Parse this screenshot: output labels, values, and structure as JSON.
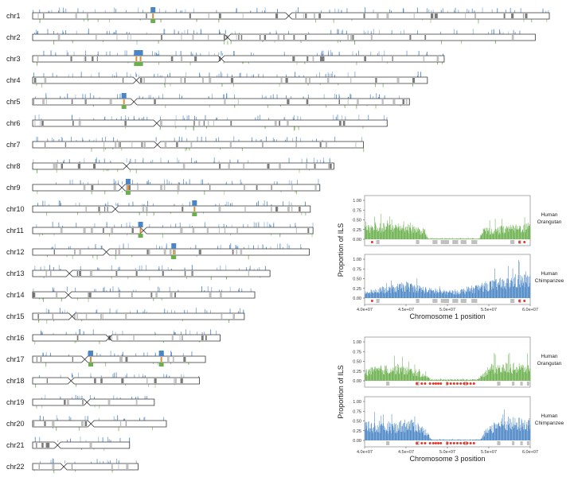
{
  "colors": {
    "ils_hc": "#4a86c5",
    "ils_ho": "#6ab04c",
    "overlap": "#e08a2c",
    "gap": "#7b7b7b",
    "gap_light": "#c0c0c0",
    "dot": "#e8332a"
  },
  "genome": {
    "chromosomes": [
      {
        "name": "chr1",
        "length": 248.96,
        "centromere": 123.4
      },
      {
        "name": "chr2",
        "length": 242.19,
        "centromere": 93.9
      },
      {
        "name": "chr3",
        "length": 198.3,
        "centromere": 90.9
      },
      {
        "name": "chr4",
        "length": 190.21,
        "centromere": 50.0
      },
      {
        "name": "chr5",
        "length": 181.54,
        "centromere": 48.8
      },
      {
        "name": "chr6",
        "length": 170.81,
        "centromere": 59.8
      },
      {
        "name": "chr7",
        "length": 159.35,
        "centromere": 60.1
      },
      {
        "name": "chr8",
        "length": 145.14,
        "centromere": 45.2
      },
      {
        "name": "chr9",
        "length": 138.39,
        "centromere": 43.0
      },
      {
        "name": "chr10",
        "length": 133.8,
        "centromere": 39.8
      },
      {
        "name": "chr11",
        "length": 135.09,
        "centromere": 53.4
      },
      {
        "name": "chr12",
        "length": 133.28,
        "centromere": 35.5
      },
      {
        "name": "chr13",
        "length": 114.36,
        "centromere": 17.7
      },
      {
        "name": "chr14",
        "length": 107.04,
        "centromere": 17.2
      },
      {
        "name": "chr15",
        "length": 101.99,
        "centromere": 19.0
      },
      {
        "name": "chr16",
        "length": 90.34,
        "centromere": 36.8
      },
      {
        "name": "chr17",
        "length": 83.26,
        "centromere": 25.1
      },
      {
        "name": "chr18",
        "length": 80.37,
        "centromere": 18.5
      },
      {
        "name": "chr19",
        "length": 58.62,
        "centromere": 26.2
      },
      {
        "name": "chr20",
        "length": 64.44,
        "centromere": 28.1
      },
      {
        "name": "chr21",
        "length": 46.71,
        "centromere": 12.0
      },
      {
        "name": "chr22",
        "length": 50.82,
        "centromere": 15.0
      }
    ]
  },
  "chart_data": [
    {
      "type": "bar",
      "xlabel": "Chromosome 1 position",
      "ylabel": "Proportion of ILS",
      "xlim": [
        40000000,
        60000000
      ],
      "xticks": [
        "4.0e+07",
        "4.5e+07",
        "5.0e+07",
        "5.5e+07",
        "6.0e+07"
      ],
      "ylim": [
        0,
        1
      ],
      "yticks": [
        "0.00",
        "0.25",
        "0.50",
        "0.75",
        "1.00"
      ],
      "panels": [
        {
          "name": "Human Orangutan",
          "label_lines": [
            "Human",
            "Orangutan"
          ],
          "color": "#6ab04c",
          "profile": [
            [
              40.0,
              0.28
            ],
            [
              44.0,
              0.3
            ],
            [
              46.0,
              0.26
            ],
            [
              47.3,
              0.18
            ],
            [
              47.6,
              0.02
            ],
            [
              53.8,
              0.02
            ],
            [
              54.3,
              0.2
            ],
            [
              57.0,
              0.25
            ],
            [
              60.0,
              0.3
            ]
          ],
          "gaps_x": [
            [
              41.4,
              41.8
            ],
            [
              46.2,
              46.6
            ],
            [
              48.2,
              48.8
            ],
            [
              49.2,
              50.2
            ],
            [
              50.6,
              51.3
            ],
            [
              51.6,
              52.3
            ],
            [
              52.9,
              53.6
            ],
            [
              57.6,
              58.1
            ],
            [
              58.6,
              58.9
            ]
          ],
          "dots_x": [
            40.9,
            58.7,
            59.3
          ]
        },
        {
          "name": "Human Chimpanzee",
          "label_lines": [
            "Human",
            "Chimpanzee"
          ],
          "color": "#4a86c5",
          "profile": [
            [
              40.0,
              0.15
            ],
            [
              43.0,
              0.22
            ],
            [
              45.0,
              0.3
            ],
            [
              48.0,
              0.18
            ],
            [
              50.0,
              0.14
            ],
            [
              52.0,
              0.18
            ],
            [
              53.5,
              0.25
            ],
            [
              55.0,
              0.32
            ],
            [
              57.0,
              0.36
            ],
            [
              58.5,
              0.45
            ],
            [
              60.0,
              0.42
            ]
          ],
          "gaps_x": [
            [
              41.4,
              41.8
            ],
            [
              46.2,
              46.6
            ],
            [
              48.2,
              48.8
            ],
            [
              49.2,
              50.2
            ],
            [
              50.6,
              51.3
            ],
            [
              51.6,
              52.3
            ],
            [
              52.9,
              53.6
            ],
            [
              57.6,
              58.1
            ],
            [
              58.6,
              58.9
            ]
          ],
          "dots_x": [
            40.9,
            58.7,
            59.3
          ]
        }
      ]
    },
    {
      "type": "bar",
      "xlabel": "Chromosome 3 position",
      "ylabel": "Proportion of ILS",
      "xlim": [
        40000000,
        60000000
      ],
      "xticks": [
        "4.0e+07",
        "4.5e+07",
        "5.0e+07",
        "5.5e+07",
        "6.0e+07"
      ],
      "ylim": [
        0,
        1
      ],
      "yticks": [
        "0.00",
        "0.25",
        "0.50",
        "0.75",
        "1.00"
      ],
      "panels": [
        {
          "name": "Human Orangutan",
          "label_lines": [
            "Human",
            "Orangutan"
          ],
          "color": "#6ab04c",
          "profile": [
            [
              40.0,
              0.22
            ],
            [
              42.0,
              0.28
            ],
            [
              44.0,
              0.3
            ],
            [
              46.0,
              0.22
            ],
            [
              47.5,
              0.1
            ],
            [
              48.0,
              0.03
            ],
            [
              53.5,
              0.03
            ],
            [
              54.3,
              0.15
            ],
            [
              55.0,
              0.3
            ],
            [
              57.0,
              0.33
            ],
            [
              60.0,
              0.3
            ]
          ],
          "gaps_x": [
            [
              42.6,
              43.0
            ],
            [
              46.2,
              46.6
            ],
            [
              49.8,
              50.1
            ],
            [
              52.0,
              52.4
            ],
            [
              56.0,
              56.4
            ],
            [
              57.8,
              58.1
            ],
            [
              58.8,
              59.1
            ],
            [
              59.6,
              59.9
            ]
          ],
          "dots_x": [
            46.3,
            46.9,
            47.3,
            47.9,
            48.3,
            48.6,
            48.9,
            49.2,
            50.0,
            50.4,
            50.8,
            51.2,
            51.6,
            52.0,
            52.4,
            52.8,
            53.2
          ]
        },
        {
          "name": "Human Chimpanzee",
          "label_lines": [
            "Human",
            "Chimpanzee"
          ],
          "color": "#4a86c5",
          "profile": [
            [
              40.0,
              0.38
            ],
            [
              42.0,
              0.3
            ],
            [
              44.0,
              0.34
            ],
            [
              46.0,
              0.38
            ],
            [
              47.5,
              0.2
            ],
            [
              48.0,
              0.02
            ],
            [
              54.0,
              0.02
            ],
            [
              54.8,
              0.25
            ],
            [
              56.0,
              0.4
            ],
            [
              58.0,
              0.42
            ],
            [
              60.0,
              0.4
            ]
          ],
          "gaps_x": [
            [
              42.6,
              43.0
            ],
            [
              46.2,
              46.6
            ],
            [
              49.8,
              50.1
            ],
            [
              52.0,
              52.4
            ],
            [
              56.0,
              56.4
            ],
            [
              57.8,
              58.1
            ],
            [
              58.8,
              59.1
            ],
            [
              59.6,
              59.9
            ]
          ],
          "dots_x": [
            46.3,
            46.9,
            47.3,
            47.9,
            48.3,
            48.6,
            48.9,
            49.2,
            50.0,
            50.4,
            50.8,
            51.2,
            51.6,
            52.0,
            52.4,
            52.8,
            53.2
          ]
        }
      ]
    }
  ]
}
